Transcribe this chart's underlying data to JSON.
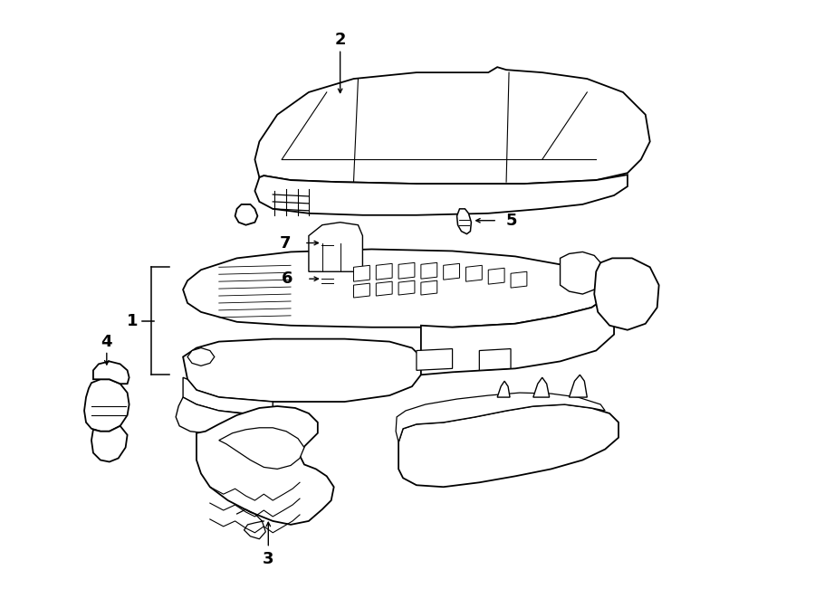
{
  "background_color": "#ffffff",
  "line_color": "#000000",
  "line_width": 1.3,
  "fig_width": 9.0,
  "fig_height": 6.61,
  "dpi": 100
}
